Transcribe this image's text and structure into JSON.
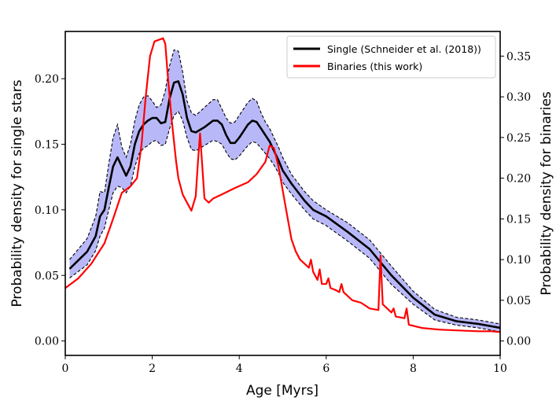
{
  "chart_data": {
    "type": "line",
    "xlabel": "Age [Myrs]",
    "ylabel_left": "Probability density for single stars",
    "ylabel_right": "Probability density for binaries",
    "xlim": [
      0,
      10
    ],
    "ylim_left": [
      -0.011,
      0.236
    ],
    "ylim_right": [
      -0.0177,
      0.3803
    ],
    "x_ticks": [
      0,
      2,
      4,
      6,
      8,
      10
    ],
    "x_tick_labels": [
      "0",
      "2",
      "4",
      "6",
      "8",
      "10"
    ],
    "y_left_ticks": [
      0.0,
      0.05,
      0.1,
      0.15,
      0.2
    ],
    "y_left_tick_labels": [
      "0.00",
      "0.05",
      "0.10",
      "0.15",
      "0.20"
    ],
    "y_right_ticks": [
      0.0,
      0.05,
      0.1,
      0.15,
      0.2,
      0.25,
      0.3,
      0.35
    ],
    "y_right_tick_labels": [
      "0.00",
      "0.05",
      "0.10",
      "0.15",
      "0.20",
      "0.25",
      "0.30",
      "0.35"
    ],
    "legend": {
      "position": "upper right",
      "entries": [
        {
          "label": "Single (Schneider et al. (2018))",
          "color": "#000000"
        },
        {
          "label": "Binaries (this work)",
          "color": "#ff0000"
        }
      ]
    },
    "colors": {
      "single": "#000000",
      "binaries": "#ff0000",
      "band_fill": "#b0b0f8",
      "band_edge": "#000000"
    },
    "series": [
      {
        "name": "Single (Schneider et al. (2018))",
        "axis": "left",
        "x": [
          0.1,
          0.5,
          0.7,
          0.8,
          0.9,
          1.0,
          1.1,
          1.2,
          1.3,
          1.4,
          1.5,
          1.6,
          1.7,
          1.8,
          1.9,
          2.0,
          2.1,
          2.2,
          2.3,
          2.4,
          2.5,
          2.6,
          2.7,
          2.8,
          2.9,
          3.0,
          3.2,
          3.4,
          3.5,
          3.6,
          3.7,
          3.8,
          3.9,
          4.0,
          4.1,
          4.2,
          4.3,
          4.4,
          4.5,
          4.6,
          4.7,
          4.8,
          4.9,
          5.0,
          5.2,
          5.5,
          5.7,
          6.0,
          6.5,
          7.0,
          7.5,
          8.0,
          8.5,
          9.0,
          9.5,
          10.0
        ],
        "values": [
          0.055,
          0.068,
          0.08,
          0.095,
          0.1,
          0.117,
          0.133,
          0.14,
          0.133,
          0.126,
          0.133,
          0.15,
          0.16,
          0.165,
          0.168,
          0.17,
          0.17,
          0.166,
          0.167,
          0.185,
          0.197,
          0.198,
          0.188,
          0.17,
          0.16,
          0.159,
          0.163,
          0.168,
          0.168,
          0.165,
          0.157,
          0.151,
          0.151,
          0.155,
          0.16,
          0.165,
          0.168,
          0.167,
          0.162,
          0.157,
          0.152,
          0.145,
          0.138,
          0.13,
          0.12,
          0.107,
          0.1,
          0.095,
          0.083,
          0.07,
          0.05,
          0.033,
          0.02,
          0.015,
          0.013,
          0.01
        ]
      },
      {
        "name": "Single upper bound",
        "axis": "left",
        "x": [
          0.1,
          0.5,
          0.7,
          0.8,
          0.9,
          1.0,
          1.1,
          1.2,
          1.3,
          1.4,
          1.5,
          1.6,
          1.7,
          1.8,
          1.9,
          2.0,
          2.1,
          2.2,
          2.3,
          2.4,
          2.5,
          2.6,
          2.7,
          2.8,
          2.9,
          3.0,
          3.2,
          3.4,
          3.5,
          3.6,
          3.7,
          3.8,
          3.9,
          4.0,
          4.1,
          4.2,
          4.3,
          4.4,
          4.5,
          4.6,
          4.7,
          4.8,
          4.9,
          5.0,
          5.2,
          5.5,
          5.7,
          6.0,
          6.5,
          7.0,
          7.5,
          8.0,
          8.5,
          9.0,
          9.5,
          10.0
        ],
        "values": [
          0.062,
          0.078,
          0.095,
          0.114,
          0.113,
          0.135,
          0.155,
          0.165,
          0.148,
          0.14,
          0.15,
          0.168,
          0.18,
          0.186,
          0.187,
          0.183,
          0.178,
          0.18,
          0.191,
          0.21,
          0.222,
          0.221,
          0.205,
          0.183,
          0.174,
          0.172,
          0.178,
          0.184,
          0.184,
          0.177,
          0.17,
          0.166,
          0.167,
          0.172,
          0.177,
          0.182,
          0.185,
          0.183,
          0.174,
          0.167,
          0.162,
          0.155,
          0.148,
          0.14,
          0.127,
          0.114,
          0.107,
          0.1,
          0.09,
          0.077,
          0.057,
          0.038,
          0.024,
          0.018,
          0.016,
          0.013
        ]
      },
      {
        "name": "Single lower bound",
        "axis": "left",
        "x": [
          0.1,
          0.5,
          0.7,
          0.8,
          0.9,
          1.0,
          1.1,
          1.2,
          1.3,
          1.4,
          1.5,
          1.6,
          1.7,
          1.8,
          1.9,
          2.0,
          2.1,
          2.2,
          2.3,
          2.4,
          2.5,
          2.6,
          2.7,
          2.8,
          2.9,
          3.0,
          3.2,
          3.4,
          3.5,
          3.6,
          3.7,
          3.8,
          3.9,
          4.0,
          4.1,
          4.2,
          4.3,
          4.4,
          4.5,
          4.6,
          4.7,
          4.8,
          4.9,
          5.0,
          5.2,
          5.5,
          5.7,
          6.0,
          6.5,
          7.0,
          7.5,
          8.0,
          8.5,
          9.0,
          9.5,
          10.0
        ],
        "values": [
          0.048,
          0.058,
          0.069,
          0.08,
          0.086,
          0.1,
          0.113,
          0.118,
          0.117,
          0.113,
          0.118,
          0.133,
          0.143,
          0.147,
          0.149,
          0.152,
          0.153,
          0.149,
          0.15,
          0.162,
          0.172,
          0.175,
          0.168,
          0.155,
          0.146,
          0.145,
          0.149,
          0.153,
          0.152,
          0.15,
          0.144,
          0.139,
          0.138,
          0.141,
          0.145,
          0.149,
          0.152,
          0.151,
          0.147,
          0.143,
          0.139,
          0.134,
          0.128,
          0.121,
          0.112,
          0.1,
          0.093,
          0.088,
          0.076,
          0.063,
          0.043,
          0.028,
          0.016,
          0.012,
          0.01,
          0.007
        ]
      },
      {
        "name": "Binaries (this work)",
        "axis": "right",
        "x": [
          0.0,
          0.3,
          0.6,
          0.9,
          1.1,
          1.3,
          1.5,
          1.65,
          1.75,
          1.85,
          1.95,
          2.05,
          2.15,
          2.25,
          2.3,
          2.35,
          2.45,
          2.55,
          2.6,
          2.7,
          2.8,
          2.9,
          3.0,
          3.05,
          3.1,
          3.15,
          3.2,
          3.3,
          3.4,
          3.6,
          3.9,
          4.2,
          4.4,
          4.6,
          4.7,
          4.8,
          4.9,
          5.0,
          5.1,
          5.2,
          5.3,
          5.4,
          5.5,
          5.6,
          5.65,
          5.7,
          5.8,
          5.85,
          5.9,
          6.0,
          6.05,
          6.1,
          6.2,
          6.3,
          6.35,
          6.4,
          6.6,
          6.8,
          7.0,
          7.2,
          7.25,
          7.3,
          7.5,
          7.55,
          7.6,
          7.8,
          7.85,
          7.9,
          8.2,
          8.6,
          9.0,
          9.5,
          9.8,
          10.0
        ],
        "values": [
          0.065,
          0.077,
          0.095,
          0.12,
          0.15,
          0.182,
          0.19,
          0.2,
          0.24,
          0.3,
          0.35,
          0.368,
          0.37,
          0.372,
          0.365,
          0.33,
          0.27,
          0.22,
          0.2,
          0.18,
          0.17,
          0.16,
          0.178,
          0.22,
          0.255,
          0.215,
          0.175,
          0.17,
          0.175,
          0.18,
          0.188,
          0.195,
          0.205,
          0.22,
          0.24,
          0.237,
          0.215,
          0.185,
          0.155,
          0.125,
          0.11,
          0.1,
          0.095,
          0.09,
          0.1,
          0.085,
          0.075,
          0.088,
          0.07,
          0.07,
          0.077,
          0.065,
          0.063,
          0.06,
          0.07,
          0.06,
          0.05,
          0.047,
          0.04,
          0.038,
          0.105,
          0.045,
          0.035,
          0.04,
          0.03,
          0.028,
          0.04,
          0.02,
          0.016,
          0.014,
          0.013,
          0.012,
          0.012,
          0.011
        ]
      }
    ]
  }
}
